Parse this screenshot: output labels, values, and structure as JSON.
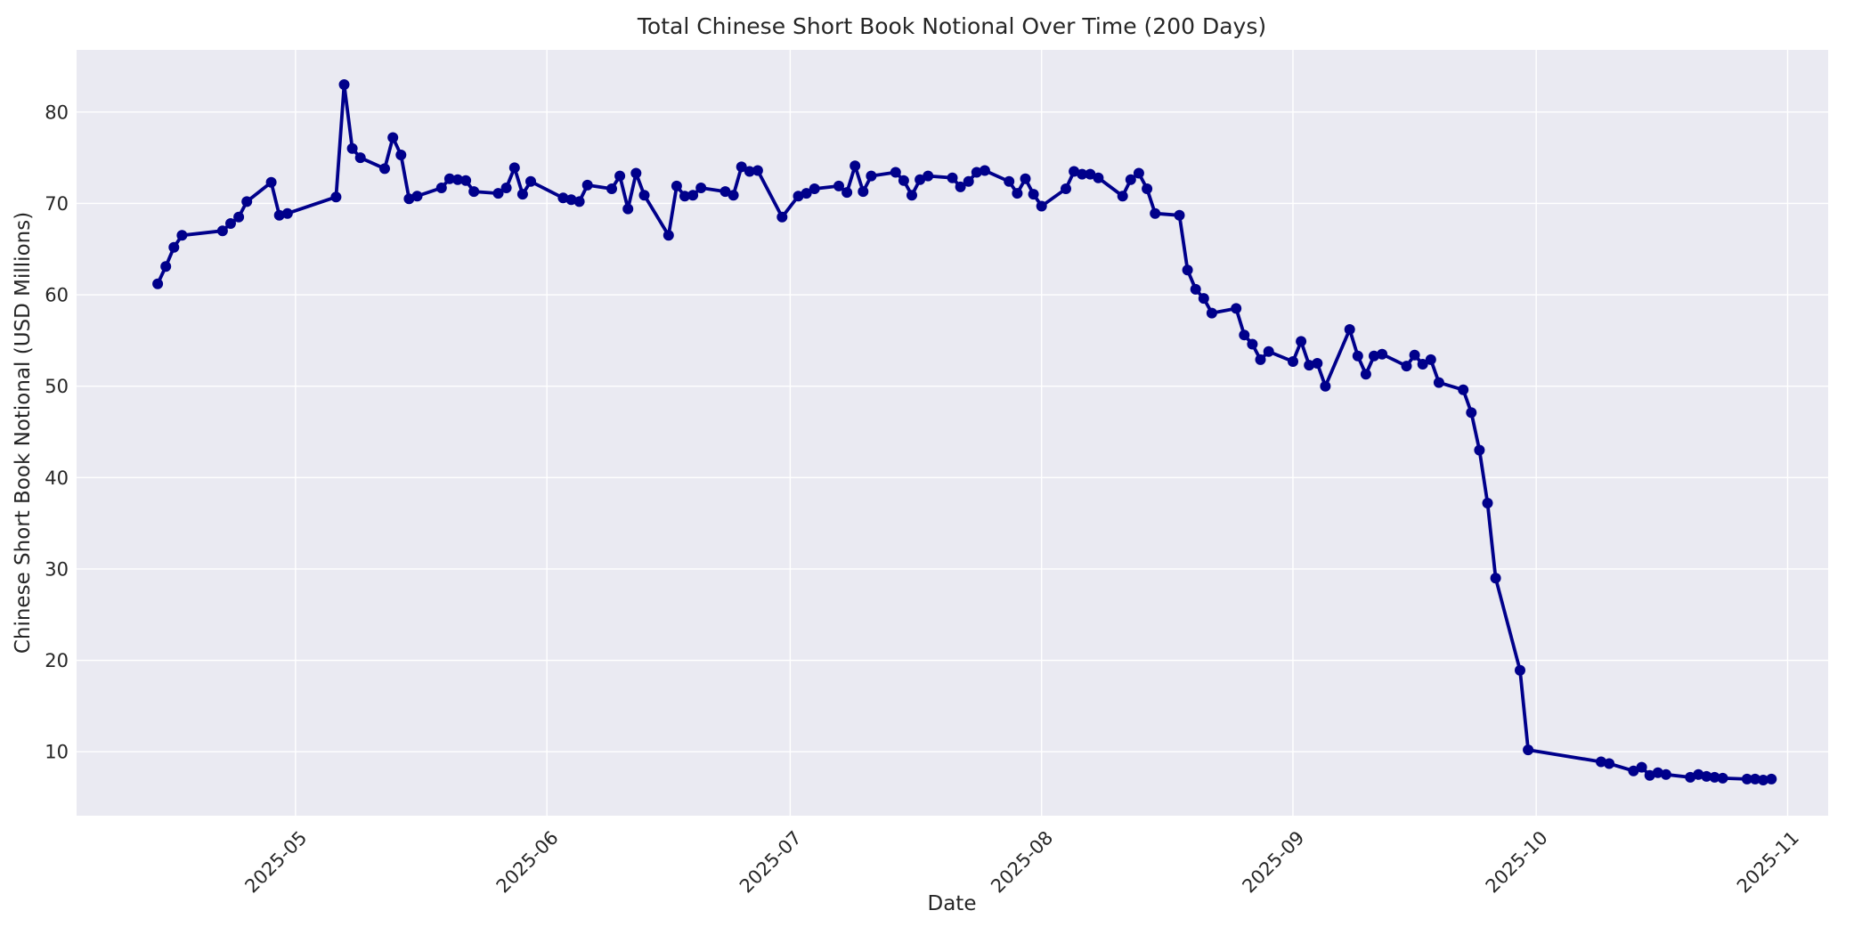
{
  "chart_data": {
    "type": "line",
    "title": "Total Chinese Short Book Notional Over Time (200 Days)",
    "xlabel": "Date",
    "ylabel": "Chinese Short Book Notional (USD Millions)",
    "legend_position": "none",
    "grid": true,
    "x_axis": {
      "range": [
        "2025-04-04",
        "2025-11-06"
      ],
      "ticks": [
        {
          "date": "2025-05-01",
          "label": "2025-05"
        },
        {
          "date": "2025-06-01",
          "label": "2025-06"
        },
        {
          "date": "2025-07-01",
          "label": "2025-07"
        },
        {
          "date": "2025-08-01",
          "label": "2025-08"
        },
        {
          "date": "2025-09-01",
          "label": "2025-09"
        },
        {
          "date": "2025-10-01",
          "label": "2025-10"
        },
        {
          "date": "2025-11-01",
          "label": "2025-11"
        }
      ]
    },
    "y_axis": {
      "range": [
        3.0,
        86.8
      ],
      "ticks": [
        10,
        20,
        30,
        40,
        50,
        60,
        70,
        80
      ]
    },
    "style": {
      "line_color": "#00008b",
      "marker": "circle",
      "marker_radius": 6,
      "line_width": 3.8,
      "plot_background": "#eaeaf2",
      "grid_color": "#ffffff",
      "text_color": "#262626"
    },
    "series": {
      "dates": [
        "2025-04-14",
        "2025-04-15",
        "2025-04-16",
        "2025-04-17",
        "2025-04-22",
        "2025-04-23",
        "2025-04-24",
        "2025-04-25",
        "2025-04-28",
        "2025-04-29",
        "2025-04-30",
        "2025-05-06",
        "2025-05-07",
        "2025-05-08",
        "2025-05-09",
        "2025-05-12",
        "2025-05-13",
        "2025-05-14",
        "2025-05-15",
        "2025-05-16",
        "2025-05-19",
        "2025-05-20",
        "2025-05-21",
        "2025-05-22",
        "2025-05-23",
        "2025-05-26",
        "2025-05-27",
        "2025-05-28",
        "2025-05-29",
        "2025-05-30",
        "2025-06-03",
        "2025-06-04",
        "2025-06-05",
        "2025-06-06",
        "2025-06-09",
        "2025-06-10",
        "2025-06-11",
        "2025-06-12",
        "2025-06-13",
        "2025-06-16",
        "2025-06-17",
        "2025-06-18",
        "2025-06-19",
        "2025-06-20",
        "2025-06-23",
        "2025-06-24",
        "2025-06-25",
        "2025-06-26",
        "2025-06-27",
        "2025-06-30",
        "2025-07-02",
        "2025-07-03",
        "2025-07-04",
        "2025-07-07",
        "2025-07-08",
        "2025-07-09",
        "2025-07-10",
        "2025-07-11",
        "2025-07-14",
        "2025-07-15",
        "2025-07-16",
        "2025-07-17",
        "2025-07-18",
        "2025-07-21",
        "2025-07-22",
        "2025-07-23",
        "2025-07-24",
        "2025-07-25",
        "2025-07-28",
        "2025-07-29",
        "2025-07-30",
        "2025-07-31",
        "2025-08-01",
        "2025-08-04",
        "2025-08-05",
        "2025-08-06",
        "2025-08-07",
        "2025-08-08",
        "2025-08-11",
        "2025-08-12",
        "2025-08-13",
        "2025-08-14",
        "2025-08-15",
        "2025-08-18",
        "2025-08-19",
        "2025-08-20",
        "2025-08-21",
        "2025-08-22",
        "2025-08-25",
        "2025-08-26",
        "2025-08-27",
        "2025-08-28",
        "2025-08-29",
        "2025-09-01",
        "2025-09-02",
        "2025-09-03",
        "2025-09-04",
        "2025-09-05",
        "2025-09-08",
        "2025-09-09",
        "2025-09-10",
        "2025-09-11",
        "2025-09-12",
        "2025-09-15",
        "2025-09-16",
        "2025-09-17",
        "2025-09-18",
        "2025-09-19",
        "2025-09-22",
        "2025-09-23",
        "2025-09-24",
        "2025-09-25",
        "2025-09-26",
        "2025-09-29",
        "2025-09-30",
        "2025-10-09",
        "2025-10-10",
        "2025-10-13",
        "2025-10-14",
        "2025-10-15",
        "2025-10-16",
        "2025-10-17",
        "2025-10-20",
        "2025-10-21",
        "2025-10-22",
        "2025-10-23",
        "2025-10-24",
        "2025-10-27",
        "2025-10-28",
        "2025-10-29",
        "2025-10-30"
      ],
      "values": [
        61.2,
        63.1,
        65.2,
        66.5,
        67.0,
        67.8,
        68.5,
        70.2,
        72.3,
        68.7,
        68.9,
        70.7,
        83.0,
        76.0,
        75.0,
        73.8,
        77.2,
        75.3,
        70.5,
        70.8,
        71.7,
        72.7,
        72.6,
        72.5,
        71.3,
        71.1,
        71.7,
        73.9,
        71.0,
        72.4,
        70.6,
        70.4,
        70.2,
        72.0,
        71.6,
        73.0,
        69.4,
        73.3,
        70.9,
        66.5,
        71.9,
        70.8,
        70.9,
        71.7,
        71.3,
        70.9,
        74.0,
        73.5,
        73.6,
        68.5,
        70.8,
        71.1,
        71.6,
        71.9,
        71.2,
        74.1,
        71.3,
        73.0,
        73.4,
        72.5,
        70.9,
        72.6,
        73.0,
        72.8,
        71.8,
        72.4,
        73.4,
        73.6,
        72.4,
        71.1,
        72.7,
        71.0,
        69.7,
        71.6,
        73.5,
        73.2,
        73.2,
        72.8,
        70.8,
        72.6,
        73.3,
        71.6,
        68.9,
        68.7,
        62.7,
        60.6,
        59.6,
        58.0,
        58.5,
        55.6,
        54.6,
        52.9,
        53.8,
        52.7,
        54.9,
        52.3,
        52.5,
        50.0,
        56.2,
        53.3,
        51.3,
        53.3,
        53.5,
        52.2,
        53.4,
        52.4,
        52.9,
        50.4,
        49.6,
        47.1,
        43.0,
        37.2,
        29.0,
        18.9,
        10.2,
        8.9,
        8.7,
        7.9,
        8.3,
        7.4,
        7.7,
        7.5,
        7.2,
        7.5,
        7.3,
        7.2,
        7.1,
        7.0,
        7.0,
        6.9,
        7.0
      ]
    }
  }
}
